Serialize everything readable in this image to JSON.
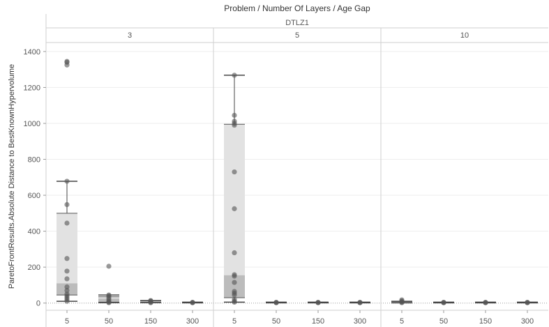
{
  "chart_data": {
    "type": "box",
    "column_header": "Problem  /  Number Of Layers  /  Age Gap",
    "problem": "DTLZ1",
    "ylabel": "ParetoFrontResults.Absolute Distance to BestKnownHypervolume",
    "ylim": [
      -40,
      1450
    ],
    "yticks": [
      0,
      200,
      400,
      600,
      800,
      1000,
      1200,
      1400
    ],
    "panels": [
      {
        "layers": "3",
        "groups": [
          {
            "age_gap": "5",
            "whisker_low": 10,
            "q1": 45,
            "median": 110,
            "q3": 500,
            "whisker_high": 678,
            "points": [
              10,
              20,
              30,
              40,
              50,
              70,
              90,
              135,
              178,
              248,
              445,
              548,
              678,
              1325,
              1340,
              1345
            ]
          },
          {
            "age_gap": "50",
            "whisker_low": 2,
            "q1": 5,
            "median": 25,
            "q3": 35,
            "whisker_high": 45,
            "points": [
              2,
              5,
              10,
              20,
              30,
              40,
              45,
              205
            ]
          },
          {
            "age_gap": "150",
            "whisker_low": 2,
            "q1": 4,
            "median": 8,
            "q3": 12,
            "whisker_high": 14,
            "points": [
              2,
              5,
              8,
              12,
              14
            ]
          },
          {
            "age_gap": "300",
            "whisker_low": 1,
            "q1": 2,
            "median": 3,
            "q3": 4,
            "whisker_high": 5,
            "points": [
              2,
              3,
              4
            ]
          }
        ]
      },
      {
        "layers": "5",
        "groups": [
          {
            "age_gap": "5",
            "whisker_low": 5,
            "q1": 30,
            "median": 155,
            "q3": 995,
            "whisker_high": 1268,
            "points": [
              5,
              10,
              20,
              45,
              55,
              65,
              115,
              150,
              158,
              280,
              525,
              730,
              990,
              1000,
              1012,
              1045,
              1268
            ]
          },
          {
            "age_gap": "50",
            "whisker_low": 1,
            "q1": 2,
            "median": 3,
            "q3": 4,
            "whisker_high": 5,
            "points": [
              2,
              3,
              4
            ]
          },
          {
            "age_gap": "150",
            "whisker_low": 1,
            "q1": 2,
            "median": 3,
            "q3": 4,
            "whisker_high": 5,
            "points": [
              2,
              3,
              4
            ]
          },
          {
            "age_gap": "300",
            "whisker_low": 1,
            "q1": 2,
            "median": 3,
            "q3": 4,
            "whisker_high": 5,
            "points": [
              2,
              3,
              4
            ]
          }
        ]
      },
      {
        "layers": "10",
        "groups": [
          {
            "age_gap": "5",
            "whisker_low": 1,
            "q1": 2,
            "median": 5,
            "q3": 8,
            "whisker_high": 10,
            "points": [
              2,
              5,
              8,
              12,
              18
            ]
          },
          {
            "age_gap": "50",
            "whisker_low": 1,
            "q1": 2,
            "median": 3,
            "q3": 4,
            "whisker_high": 5,
            "points": [
              2,
              3,
              4
            ]
          },
          {
            "age_gap": "150",
            "whisker_low": 1,
            "q1": 2,
            "median": 3,
            "q3": 4,
            "whisker_high": 5,
            "points": [
              2,
              3,
              4
            ]
          },
          {
            "age_gap": "300",
            "whisker_low": 1,
            "q1": 2,
            "median": 3,
            "q3": 4,
            "whisker_high": 5,
            "points": [
              2,
              3,
              4
            ]
          }
        ]
      }
    ],
    "colors": {
      "point": "#555555",
      "box_upper": "#e2e2e2",
      "box_lower": "#bcbcbc",
      "whisker": "#444444",
      "grid": "#eeeeee",
      "divider": "#cfcfcf"
    }
  }
}
